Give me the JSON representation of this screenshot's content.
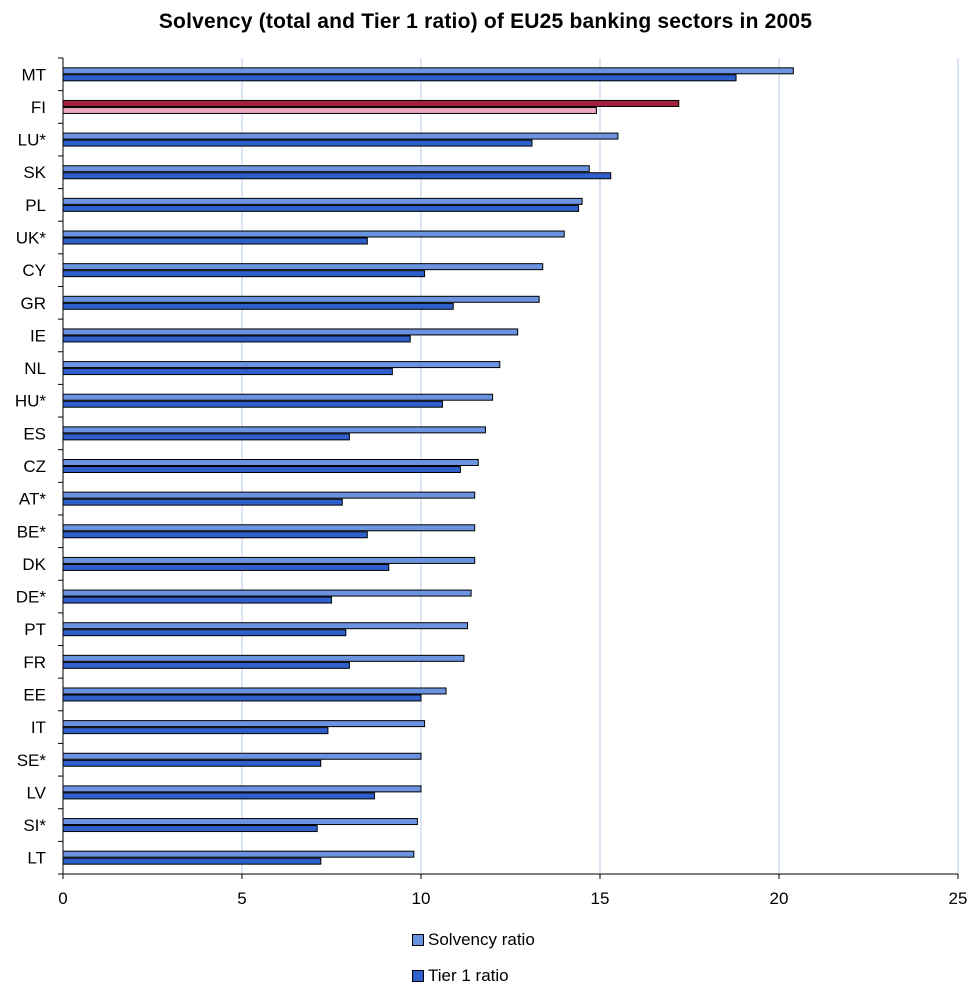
{
  "chart_data": {
    "type": "bar",
    "orientation": "horizontal",
    "title": "Solvency (total and Tier 1 ratio) of EU25 banking sectors in 2005",
    "xlabel": "",
    "ylabel": "",
    "xlim": [
      0,
      25
    ],
    "x_ticks": [
      0,
      5,
      10,
      15,
      20,
      25
    ],
    "grid": "vertical",
    "legend_placement": "bottom",
    "categories": [
      "MT",
      "FI",
      "LU*",
      "SK",
      "PL",
      "UK*",
      "CY",
      "GR",
      "IE",
      "NL",
      "HU*",
      "ES",
      "CZ",
      "AT*",
      "BE*",
      "DK",
      "DE*",
      "PT",
      "FR",
      "EE",
      "IT",
      "SE*",
      "LV",
      "SI*",
      "LT"
    ],
    "series": [
      {
        "name": "Solvency ratio",
        "color": "#6C93DF",
        "values": [
          20.4,
          17.2,
          15.5,
          14.7,
          14.5,
          14.0,
          13.4,
          13.3,
          12.7,
          12.2,
          12.0,
          11.8,
          11.6,
          11.5,
          11.5,
          11.5,
          11.4,
          11.3,
          11.2,
          10.7,
          10.1,
          10.0,
          10.0,
          9.9,
          9.8
        ],
        "highlight_colors": {
          "FI": "#A3213F"
        }
      },
      {
        "name": "Tier 1 ratio",
        "color": "#2E5FCA",
        "values": [
          18.8,
          14.9,
          13.1,
          15.3,
          14.4,
          8.5,
          10.1,
          10.9,
          9.7,
          9.2,
          10.6,
          8.0,
          11.1,
          7.8,
          8.5,
          9.1,
          7.5,
          7.9,
          8.0,
          10.0,
          7.4,
          7.2,
          8.7,
          7.1,
          7.2
        ],
        "highlight_colors": {
          "FI": "#E8A9BC"
        }
      }
    ]
  },
  "legend": {
    "items": [
      {
        "label": "Solvency ratio",
        "color": "#6C93DF"
      },
      {
        "label": "Tier 1 ratio",
        "color": "#2E5FCA"
      }
    ]
  },
  "colors": {
    "grid": "#B9CCEE",
    "axis": "#000000",
    "bar_outline": "#000000"
  }
}
